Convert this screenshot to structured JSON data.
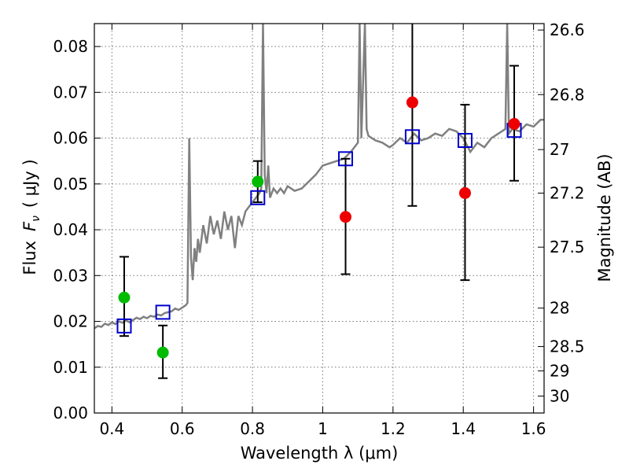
{
  "chart_data": {
    "type": "scatter",
    "xlabel": "Wavelength  λ (μm)",
    "ylabel_text": "Flux",
    "ylabel_symbol": "F",
    "ylabel_subscript": "ν",
    "ylabel_unit": "( μJy )",
    "y2label": "Magnitude (AB)",
    "xlim": [
      0.35,
      1.63
    ],
    "ylim": [
      0.0,
      0.085
    ],
    "grid": true,
    "x_ticks": [
      {
        "value": 0.4,
        "label": "0.4"
      },
      {
        "value": 0.6,
        "label": "0.6"
      },
      {
        "value": 0.8,
        "label": "0.8"
      },
      {
        "value": 1.0,
        "label": "1"
      },
      {
        "value": 1.2,
        "label": "1.2"
      },
      {
        "value": 1.4,
        "label": "1.4"
      },
      {
        "value": 1.6,
        "label": "1.6"
      }
    ],
    "y_ticks": [
      {
        "value": 0.0,
        "label": "0.00"
      },
      {
        "value": 0.01,
        "label": "0.01"
      },
      {
        "value": 0.02,
        "label": "0.02"
      },
      {
        "value": 0.03,
        "label": "0.03"
      },
      {
        "value": 0.04,
        "label": "0.04"
      },
      {
        "value": 0.05,
        "label": "0.05"
      },
      {
        "value": 0.06,
        "label": "0.06"
      },
      {
        "value": 0.07,
        "label": "0.07"
      },
      {
        "value": 0.08,
        "label": "0.08"
      }
    ],
    "y2_ticks": [
      {
        "flux": 0.0836,
        "label": "26.6"
      },
      {
        "flux": 0.0695,
        "label": "26.8"
      },
      {
        "flux": 0.0575,
        "label": "27"
      },
      {
        "flux": 0.048,
        "label": "27.2"
      },
      {
        "flux": 0.0362,
        "label": "27.5"
      },
      {
        "flux": 0.0229,
        "label": "28"
      },
      {
        "flux": 0.0145,
        "label": "28.5"
      },
      {
        "flux": 0.0092,
        "label": "29"
      },
      {
        "flux": 0.0037,
        "label": "30"
      }
    ],
    "series": [
      {
        "type": "line",
        "color": "#808080",
        "points": [
          [
            0.35,
            0.0185
          ],
          [
            0.36,
            0.019
          ],
          [
            0.37,
            0.0188
          ],
          [
            0.38,
            0.0195
          ],
          [
            0.39,
            0.0192
          ],
          [
            0.4,
            0.0198
          ],
          [
            0.41,
            0.0194
          ],
          [
            0.42,
            0.02
          ],
          [
            0.43,
            0.0197
          ],
          [
            0.44,
            0.0202
          ],
          [
            0.45,
            0.0198
          ],
          [
            0.46,
            0.0203
          ],
          [
            0.47,
            0.0208
          ],
          [
            0.48,
            0.0205
          ],
          [
            0.49,
            0.021
          ],
          [
            0.5,
            0.0207
          ],
          [
            0.51,
            0.0212
          ],
          [
            0.52,
            0.021
          ],
          [
            0.53,
            0.0215
          ],
          [
            0.54,
            0.0213
          ],
          [
            0.55,
            0.0218
          ],
          [
            0.56,
            0.022
          ],
          [
            0.57,
            0.0222
          ],
          [
            0.58,
            0.0228
          ],
          [
            0.59,
            0.0225
          ],
          [
            0.6,
            0.023
          ],
          [
            0.61,
            0.0235
          ],
          [
            0.615,
            0.024
          ],
          [
            0.62,
            0.06
          ],
          [
            0.625,
            0.034
          ],
          [
            0.63,
            0.029
          ],
          [
            0.635,
            0.036
          ],
          [
            0.64,
            0.033
          ],
          [
            0.645,
            0.038
          ],
          [
            0.65,
            0.035
          ],
          [
            0.66,
            0.041
          ],
          [
            0.67,
            0.037
          ],
          [
            0.68,
            0.043
          ],
          [
            0.69,
            0.039
          ],
          [
            0.7,
            0.042
          ],
          [
            0.71,
            0.038
          ],
          [
            0.72,
            0.044
          ],
          [
            0.73,
            0.04
          ],
          [
            0.74,
            0.043
          ],
          [
            0.75,
            0.036
          ],
          [
            0.76,
            0.043
          ],
          [
            0.77,
            0.041
          ],
          [
            0.78,
            0.044
          ],
          [
            0.79,
            0.045
          ],
          [
            0.8,
            0.046
          ],
          [
            0.81,
            0.047
          ],
          [
            0.82,
            0.048
          ],
          [
            0.825,
            0.049
          ],
          [
            0.83,
            0.085
          ],
          [
            0.835,
            0.052
          ],
          [
            0.84,
            0.048
          ],
          [
            0.845,
            0.054
          ],
          [
            0.85,
            0.047
          ],
          [
            0.86,
            0.049
          ],
          [
            0.87,
            0.048
          ],
          [
            0.88,
            0.049
          ],
          [
            0.89,
            0.048
          ],
          [
            0.9,
            0.0495
          ],
          [
            0.92,
            0.0485
          ],
          [
            0.94,
            0.049
          ],
          [
            0.96,
            0.0505
          ],
          [
            0.98,
            0.052
          ],
          [
            1.0,
            0.054
          ],
          [
            1.02,
            0.0545
          ],
          [
            1.04,
            0.055
          ],
          [
            1.06,
            0.0555
          ],
          [
            1.08,
            0.057
          ],
          [
            1.09,
            0.058
          ],
          [
            1.1,
            0.059
          ],
          [
            1.105,
            0.085
          ],
          [
            1.11,
            0.06
          ],
          [
            1.12,
            0.085
          ],
          [
            1.125,
            0.062
          ],
          [
            1.13,
            0.0605
          ],
          [
            1.15,
            0.0595
          ],
          [
            1.17,
            0.059
          ],
          [
            1.19,
            0.058
          ],
          [
            1.2,
            0.0585
          ],
          [
            1.22,
            0.06
          ],
          [
            1.24,
            0.059
          ],
          [
            1.26,
            0.061
          ],
          [
            1.28,
            0.0595
          ],
          [
            1.3,
            0.06
          ],
          [
            1.32,
            0.061
          ],
          [
            1.34,
            0.0605
          ],
          [
            1.36,
            0.062
          ],
          [
            1.38,
            0.0615
          ],
          [
            1.4,
            0.06
          ],
          [
            1.42,
            0.057
          ],
          [
            1.44,
            0.059
          ],
          [
            1.46,
            0.058
          ],
          [
            1.48,
            0.06
          ],
          [
            1.5,
            0.061
          ],
          [
            1.52,
            0.062
          ],
          [
            1.525,
            0.085
          ],
          [
            1.53,
            0.061
          ],
          [
            1.54,
            0.062
          ],
          [
            1.56,
            0.0615
          ],
          [
            1.58,
            0.063
          ],
          [
            1.6,
            0.0625
          ],
          [
            1.62,
            0.064
          ],
          [
            1.63,
            0.064
          ]
        ]
      },
      {
        "type": "scatter",
        "marker": "square",
        "color": "#0000cc",
        "points": [
          [
            0.435,
            0.019
          ],
          [
            0.545,
            0.022
          ],
          [
            0.815,
            0.047
          ],
          [
            1.065,
            0.0555
          ],
          [
            1.255,
            0.0603
          ],
          [
            1.405,
            0.0595
          ],
          [
            1.545,
            0.0617
          ]
        ]
      },
      {
        "type": "scatter",
        "marker": "circle",
        "color": "#00bb00",
        "points": [
          {
            "x": 0.435,
            "y": 0.0252,
            "err": [
              0.0168,
              0.0341
            ]
          },
          {
            "x": 0.545,
            "y": 0.0132,
            "err": [
              0.0076,
              0.0191
            ]
          },
          {
            "x": 0.815,
            "y": 0.0505,
            "err": [
              0.046,
              0.055
            ]
          }
        ]
      },
      {
        "type": "scatter",
        "marker": "circle",
        "color": "#ee0000",
        "points": [
          {
            "x": 1.065,
            "y": 0.0428,
            "err": [
              0.0303,
              0.0555
            ]
          },
          {
            "x": 1.255,
            "y": 0.0678,
            "err": [
              0.0452,
              0.085
            ]
          },
          {
            "x": 1.405,
            "y": 0.048,
            "err": [
              0.029,
              0.0673
            ]
          },
          {
            "x": 1.545,
            "y": 0.0631,
            "err": [
              0.0507,
              0.0758
            ]
          }
        ]
      }
    ]
  }
}
